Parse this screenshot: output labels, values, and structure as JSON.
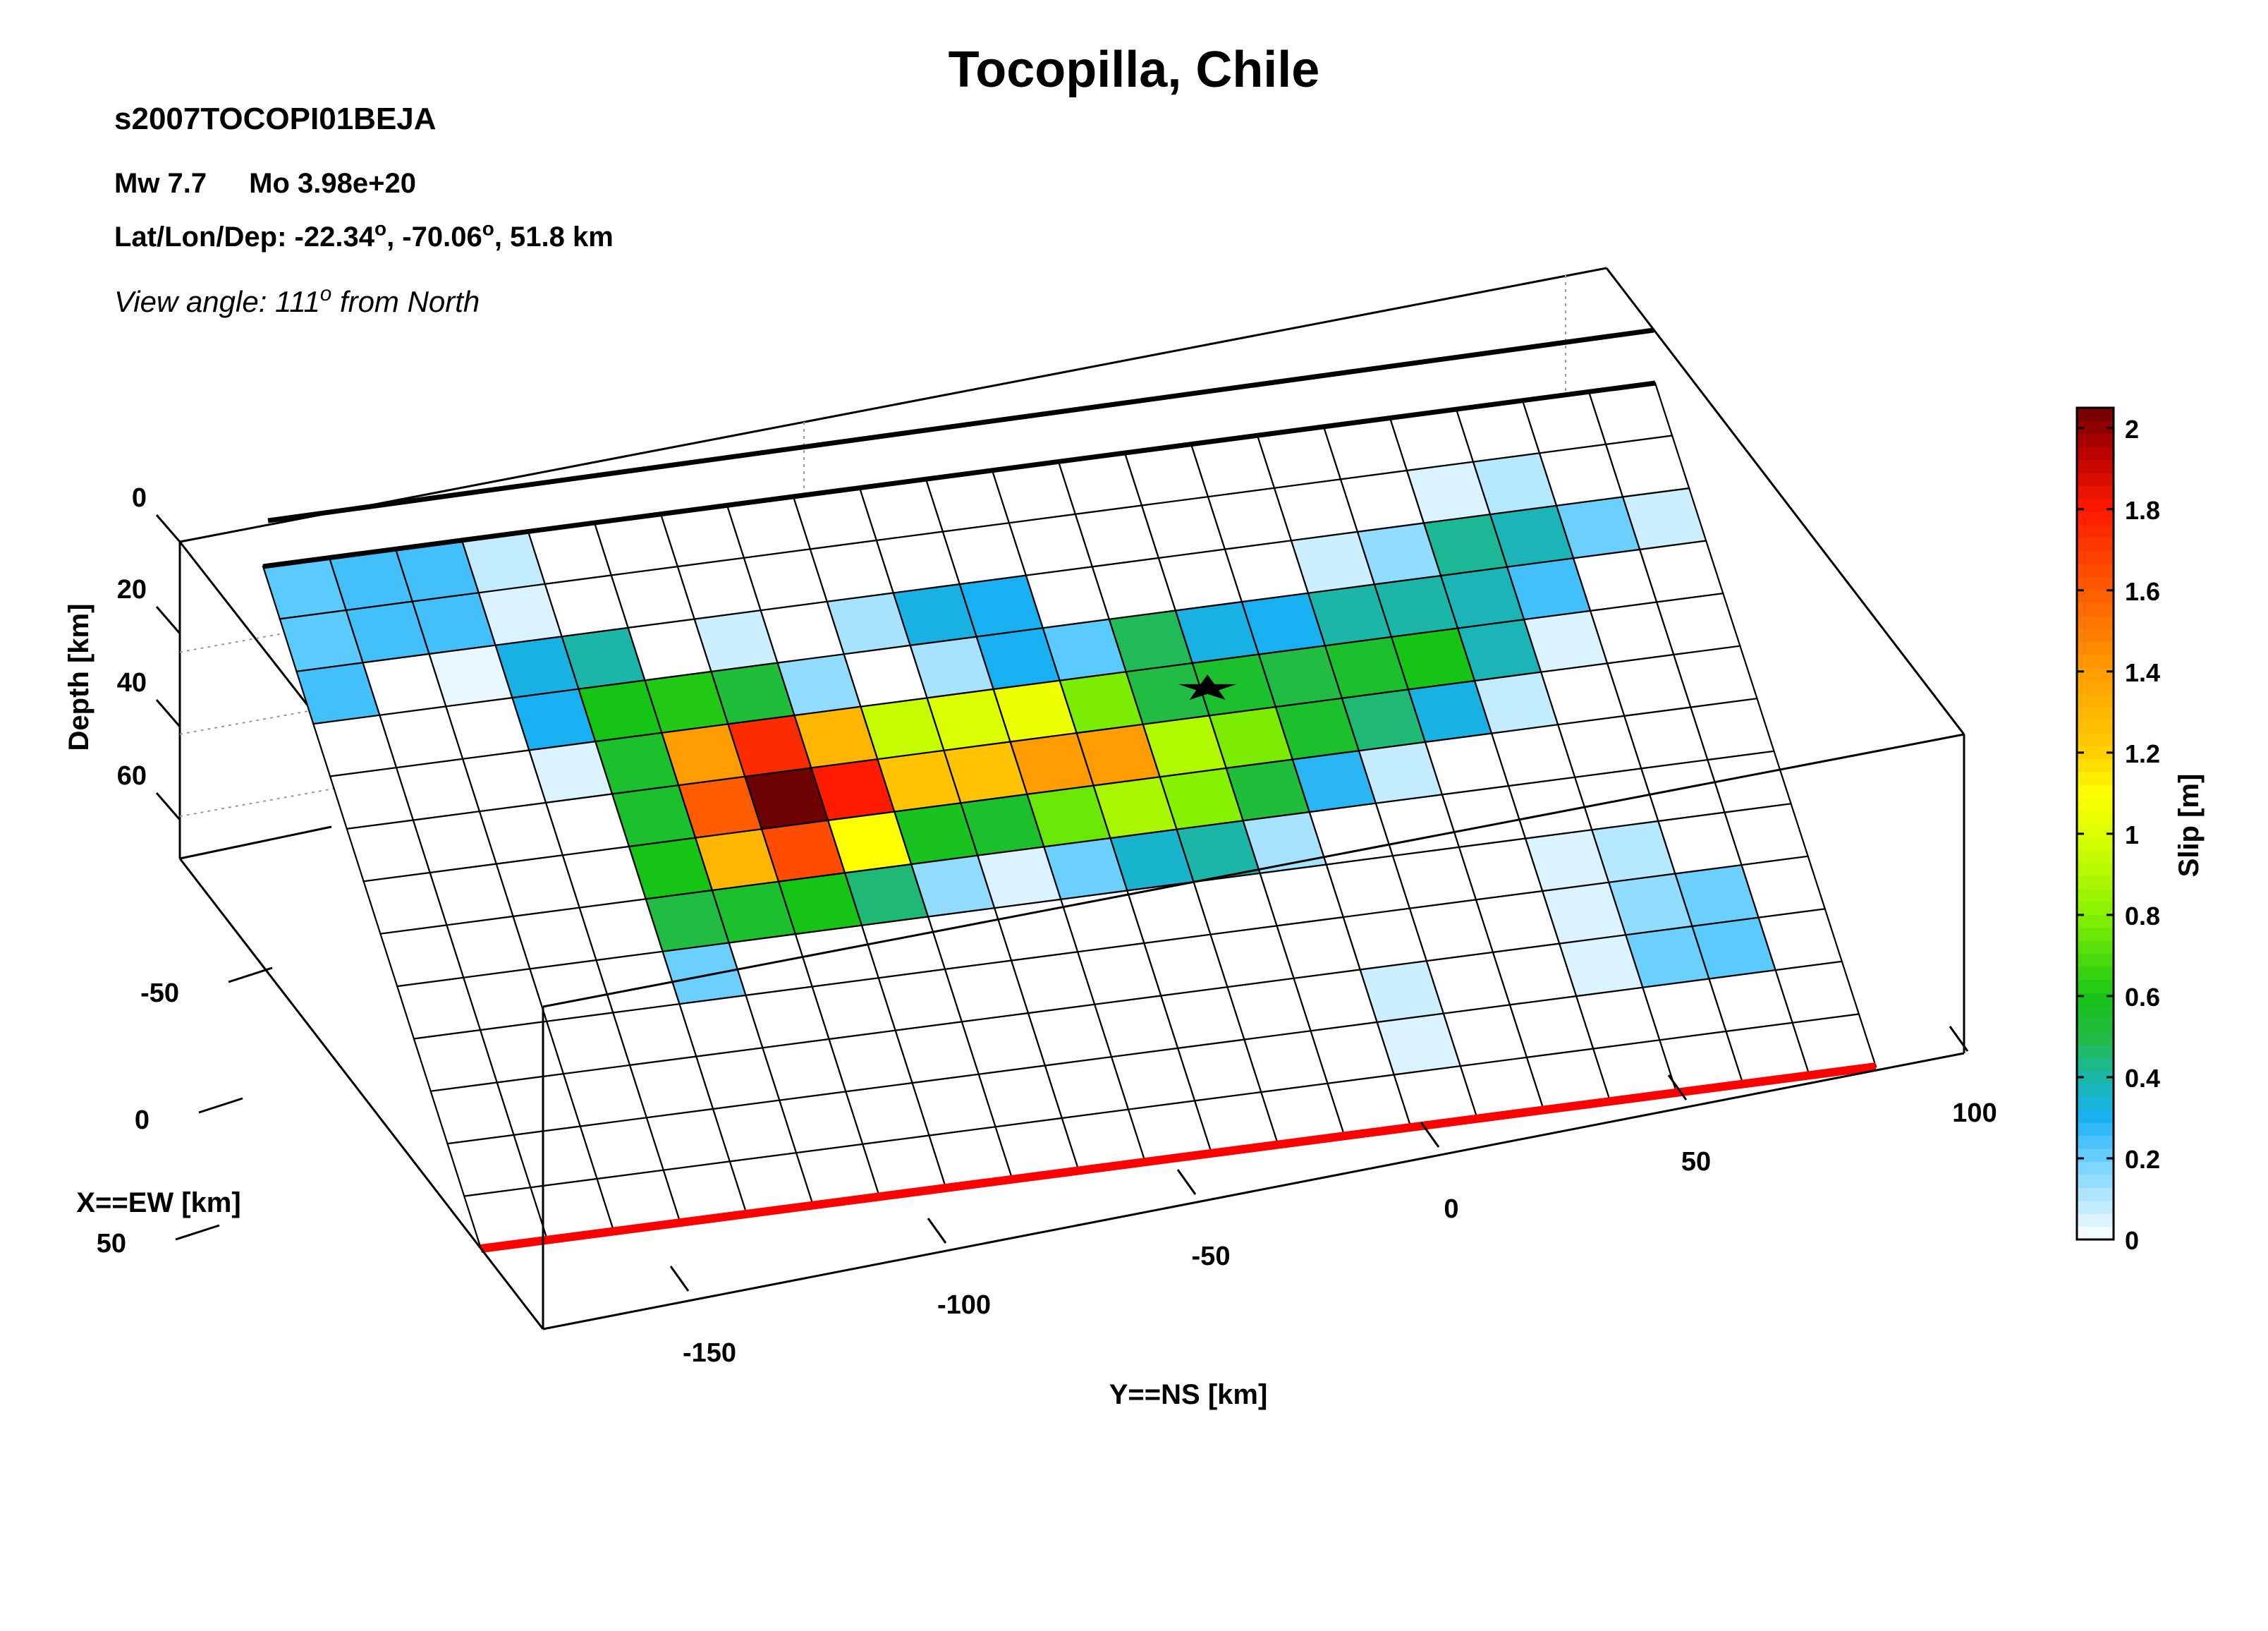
{
  "header": {
    "title": "Tocopilla, Chile",
    "event_id": "s2007TOCOPI01BEJA",
    "mw_label": "Mw 7.7",
    "mo_label": "Mo 3.98e+20",
    "latlon_prefix": "Lat/Lon/Dep: -22.34",
    "latlon_lon": ", -70.06",
    "latlon_dep": ", 51.8 km",
    "degree_symbol": "o",
    "view_prefix": "View angle: 111",
    "view_suffix": " from North"
  },
  "chart_data": {
    "type": "heatmap",
    "title": "Tocopilla, Chile",
    "x_axis": {
      "label": "Y==NS [km]",
      "ticks": [
        "-150",
        "-100",
        "-50",
        "0",
        "50",
        "100"
      ],
      "tick_values": [
        -150,
        -100,
        -50,
        0,
        50,
        100
      ]
    },
    "y_axis": {
      "label": "X==EW [km]",
      "ticks": [
        "-50",
        "0",
        "50"
      ],
      "tick_values": [
        -50,
        0,
        50
      ]
    },
    "z_axis": {
      "label": "Depth [km]",
      "ticks": [
        "0",
        "20",
        "40",
        "60"
      ],
      "tick_values": [
        0,
        20,
        40,
        60
      ]
    },
    "colorbar": {
      "label": "Slip [m]",
      "ticks": [
        "0",
        "0.2",
        "0.4",
        "0.6",
        "0.8",
        "1",
        "1.2",
        "1.4",
        "1.6",
        "1.8",
        "2"
      ],
      "range": [
        0,
        2.05
      ],
      "stops": [
        [
          0.0,
          "#ffffff"
        ],
        [
          0.2,
          "#6cd0ff"
        ],
        [
          0.3,
          "#19b0f2"
        ],
        [
          0.4,
          "#1bb6a8"
        ],
        [
          0.5,
          "#22bb44"
        ],
        [
          0.6,
          "#16c416"
        ],
        [
          0.8,
          "#86f200"
        ],
        [
          1.0,
          "#dcff00"
        ],
        [
          1.1,
          "#ffff00"
        ],
        [
          1.2,
          "#ffcf00"
        ],
        [
          1.4,
          "#ff9d00"
        ],
        [
          1.6,
          "#ff5c00"
        ],
        [
          1.8,
          "#ff1a00"
        ],
        [
          1.95,
          "#b40000"
        ],
        [
          2.05,
          "#6d0000"
        ]
      ]
    },
    "trench_color": "#ff0000",
    "hypocenter": {
      "strike_index": 13.1,
      "dip_index": 4.5,
      "label": "hypocenter"
    },
    "grid": {
      "strike_cells": 21,
      "dip_cells": 13
    },
    "slip": [
      [
        0.22,
        0.25,
        0.25,
        0.08,
        0,
        0,
        0,
        0,
        0,
        0,
        0,
        0,
        0,
        0,
        0,
        0,
        0,
        0,
        0,
        0,
        0
      ],
      [
        0.22,
        0.25,
        0.25,
        0.05,
        0,
        0,
        0,
        0,
        0,
        0,
        0,
        0,
        0,
        0,
        0,
        0,
        0,
        0.05,
        0.1,
        0,
        0
      ],
      [
        0.25,
        0,
        0.03,
        0.32,
        0.4,
        0,
        0.07,
        0,
        0.12,
        0.32,
        0.3,
        0,
        0,
        0,
        0,
        0.07,
        0.15,
        0.42,
        0.38,
        0.2,
        0.07
      ],
      [
        0,
        0,
        0,
        0.3,
        0.6,
        0.62,
        0.52,
        0.15,
        0,
        0.12,
        0.3,
        0.22,
        0.48,
        0.32,
        0.3,
        0.4,
        0.4,
        0.38,
        0.25,
        0,
        0
      ],
      [
        0,
        0,
        0,
        0.05,
        0.55,
        1.4,
        1.75,
        1.3,
        0.95,
        1.0,
        1.05,
        0.78,
        0.5,
        0.55,
        0.5,
        0.55,
        0.6,
        0.38,
        0.05,
        0,
        0
      ],
      [
        0,
        0,
        0,
        0,
        0.55,
        1.6,
        2.05,
        1.8,
        1.25,
        1.25,
        1.4,
        1.4,
        0.9,
        0.78,
        0.55,
        0.45,
        0.32,
        0.08,
        0,
        0,
        0
      ],
      [
        0,
        0,
        0,
        0,
        0.6,
        1.3,
        1.65,
        1.1,
        0.58,
        0.55,
        0.75,
        0.88,
        0.8,
        0.52,
        0.28,
        0.08,
        0,
        0,
        0,
        0,
        0
      ],
      [
        0,
        0,
        0,
        0,
        0.5,
        0.55,
        0.6,
        0.45,
        0.15,
        0.05,
        0.2,
        0.35,
        0.4,
        0.12,
        0,
        0,
        0,
        0,
        0,
        0,
        0
      ],
      [
        0,
        0,
        0,
        0,
        0.2,
        0,
        0,
        0,
        0,
        0,
        0,
        0,
        0,
        0,
        0,
        0,
        0,
        0.05,
        0.1,
        0,
        0
      ],
      [
        0,
        0,
        0,
        0,
        0,
        0,
        0,
        0,
        0,
        0,
        0,
        0,
        0,
        0,
        0,
        0,
        0,
        0.05,
        0.15,
        0.2,
        0
      ],
      [
        0,
        0,
        0,
        0,
        0,
        0,
        0,
        0,
        0,
        0,
        0,
        0,
        0,
        0,
        0.07,
        0,
        0,
        0.05,
        0.2,
        0.22,
        0
      ],
      [
        0,
        0,
        0,
        0,
        0,
        0,
        0,
        0,
        0,
        0,
        0,
        0,
        0,
        0,
        0.05,
        0,
        0,
        0,
        0,
        0,
        0
      ],
      [
        0,
        0,
        0,
        0,
        0,
        0,
        0,
        0,
        0,
        0,
        0,
        0,
        0,
        0,
        0,
        0,
        0,
        0,
        0,
        0,
        0
      ]
    ]
  }
}
